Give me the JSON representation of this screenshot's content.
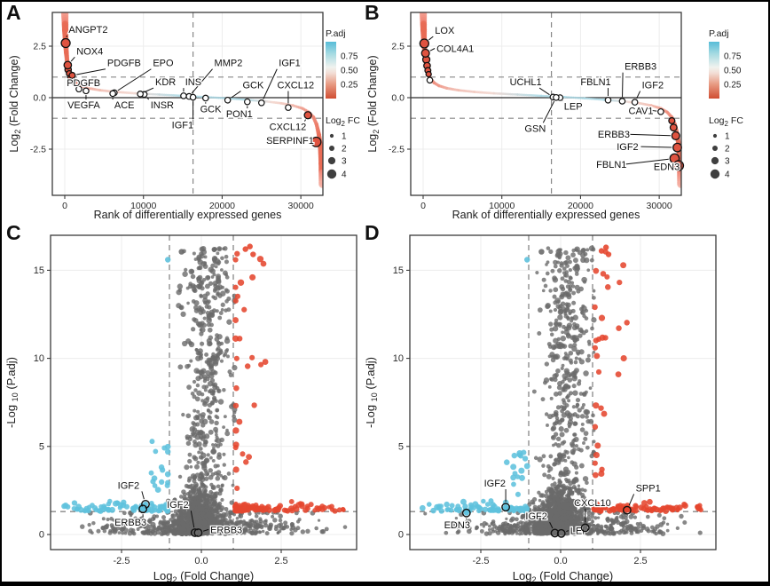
{
  "chart_data": {
    "type": "multi_panel",
    "title": "",
    "colors": {
      "curve_base": "#ef8273",
      "curve_pale": "#f5b3a6",
      "curve_mid_blue": "#aedae6",
      "curve_mid_pink": "#f2d5cd",
      "curve_deep": "#e86b55",
      "circled_fill": "#df5340",
      "volcano_red": "#e5472f",
      "volcano_blue": "#5ec1dd",
      "volcano_gray": "#6a6a6a",
      "frame": "#3a3a3a",
      "dashed": "#878787",
      "grid": "#ececec",
      "text": "#1c1c1c",
      "legend_dot": "#3f3f3f",
      "padj_gradient": [
        "#57bdd8",
        "#a8dbe2",
        "#f0f2ef",
        "#f2ded6",
        "#e89a82",
        "#d04e33"
      ]
    },
    "legend": {
      "padj_title": "P.adj",
      "padj_ticks": [
        "0.75",
        "0.50",
        "0.25"
      ],
      "size_title_parts": [
        {
          "t": "Log"
        },
        {
          "t": "2",
          "sub": true
        },
        {
          "t": " FC"
        }
      ],
      "size_entries": [
        "1",
        "2",
        "3",
        "4"
      ]
    },
    "rank_axis": {
      "xlabel": "Rank of differentially expressed genes",
      "ylabel_parts": [
        {
          "t": "Log"
        },
        {
          "t": "2",
          "sub": true
        },
        {
          "t": " (Fold Change)"
        }
      ],
      "xticks": [
        {
          "v": 0,
          "label": "0"
        },
        {
          "v": 10000,
          "label": "10000"
        },
        {
          "v": 20000,
          "label": "20000"
        },
        {
          "v": 30000,
          "label": "30000"
        }
      ],
      "yticks": [
        {
          "v": 2.5,
          "label": "2.5"
        },
        {
          "v": 0,
          "label": "0.0"
        },
        {
          "v": -2.5,
          "label": "-2.5"
        }
      ],
      "xlim": [
        -1600,
        33600
      ],
      "ylim": [
        -4.7,
        4.1
      ],
      "vline": 16300,
      "hlines": [
        1,
        -1
      ],
      "zero_line": 0
    },
    "volcano_axis": {
      "xlabel_parts": [
        {
          "t": "Log"
        },
        {
          "t": "2",
          "sub": true
        },
        {
          "t": " (Fold Change)"
        }
      ],
      "ylabel_parts": [
        {
          "t": "-Log "
        },
        {
          "t": "10",
          "sub": true
        },
        {
          "t": " (P.adj)"
        }
      ],
      "xticks": [
        {
          "v": -2.5,
          "label": "-2.5"
        },
        {
          "v": 0,
          "label": "0.0"
        },
        {
          "v": 2.5,
          "label": "2.5"
        }
      ],
      "yticks": [
        {
          "v": 0,
          "label": "0"
        },
        {
          "v": 5,
          "label": "5"
        },
        {
          "v": 10,
          "label": "10"
        },
        {
          "v": 15,
          "label": "15"
        }
      ],
      "xlim": [
        -4.7,
        4.9
      ],
      "ylim": [
        -0.9,
        17.0
      ],
      "vlines": [
        -1,
        1
      ],
      "hline": 1.3
    },
    "rank_curve": [
      [
        0,
        4.2
      ],
      [
        60,
        3.3
      ],
      [
        120,
        2.65
      ],
      [
        200,
        2.2
      ],
      [
        300,
        1.8
      ],
      [
        420,
        1.5
      ],
      [
        560,
        1.28
      ],
      [
        750,
        1.05
      ],
      [
        1000,
        0.88
      ],
      [
        1400,
        0.72
      ],
      [
        2000,
        0.58
      ],
      [
        3000,
        0.46
      ],
      [
        4500,
        0.36
      ],
      [
        6500,
        0.28
      ],
      [
        9000,
        0.21
      ],
      [
        12000,
        0.15
      ],
      [
        15000,
        0.09
      ],
      [
        18000,
        0.03
      ],
      [
        20500,
        -0.03
      ],
      [
        23000,
        -0.1
      ],
      [
        25500,
        -0.18
      ],
      [
        27500,
        -0.27
      ],
      [
        29000,
        -0.38
      ],
      [
        30200,
        -0.52
      ],
      [
        31000,
        -0.7
      ],
      [
        31600,
        -0.95
      ],
      [
        32000,
        -1.3
      ],
      [
        32300,
        -1.8
      ],
      [
        32500,
        -2.4
      ],
      [
        32650,
        -3.2
      ],
      [
        32750,
        -4.2
      ]
    ],
    "volcano_cloud": {
      "core": {
        "n": 1150,
        "x_mean": -0.05,
        "x_sd": 0.34,
        "x_clip": [
          -1.04,
          1.04
        ],
        "y_sd": 1.15
      },
      "base_wide": {
        "n": 500,
        "x_sd": 1.5,
        "x_clip": [
          -4.45,
          4.5
        ],
        "y_sd": 0.55
      },
      "column": {
        "n": 430,
        "x_mean": 0.22,
        "x_sd": 0.38,
        "x_clip": [
          -0.92,
          1.04
        ],
        "y_min": 2.0,
        "y_max": 16.3
      },
      "blue_band": {
        "n": 75,
        "x_start": -1.06,
        "x_span": 3.3,
        "pow": 1.7,
        "y_base": 1.33,
        "y_sd": 0.22
      },
      "blue_col": {
        "n": 16,
        "x_mean": -1.28,
        "x_sd": 0.17,
        "x_clip": [
          -1.75,
          -1.05
        ],
        "y_min": 2.1,
        "y_max": 5.3
      },
      "red_band": {
        "n": 95,
        "x_start": 1.05,
        "x_span": 3.45,
        "pow": 1.9,
        "y_base": 1.33,
        "y_sd": 0.2
      },
      "red_col": {
        "n": 30,
        "x_start": 1.07,
        "x_span": 1.15,
        "pow": 2.2,
        "y_min": 2.6,
        "y_max": 16.3
      }
    },
    "panels": {
      "A": {
        "letter": "A",
        "type": "rank_scatter",
        "annotations": [
          {
            "gene": "ANGPT2",
            "rank": 120,
            "lfc": 2.65,
            "marker": "circled",
            "r": 5.0,
            "lr": 500,
            "ll": 3.15
          },
          {
            "gene": "NOX4",
            "rank": 380,
            "lfc": 1.58,
            "marker": "circled",
            "r": 4.2,
            "lr": 1500,
            "ll": 2.1
          },
          {
            "gene": "PDGFB",
            "rank": 950,
            "lfc": 1.08,
            "marker": "circled",
            "r": 3.4,
            "lr": 5400,
            "ll": 1.52
          },
          {
            "gene": "EPO",
            "rank": 6300,
            "lfc": 0.24,
            "marker": "open",
            "lr": 11200,
            "ll": 1.52
          },
          {
            "gene": "MMP2",
            "rank": 15800,
            "lfc": 0.06,
            "marker": "open",
            "lr": 19000,
            "ll": 1.52
          },
          {
            "gene": "IGF1",
            "rank": 25000,
            "lfc": -0.25,
            "marker": "open",
            "lr": 27200,
            "ll": 1.52
          },
          {
            "gene": "PDGFB",
            "rank": 1800,
            "lfc": 0.42,
            "marker": "open",
            "lr": 250,
            "ll": 0.55
          },
          {
            "gene": "VEGFA",
            "rank": 2700,
            "lfc": 0.33,
            "marker": "open",
            "lr": 350,
            "ll": -0.52
          },
          {
            "gene": "ACE",
            "rank": 6100,
            "lfc": 0.2,
            "marker": "open",
            "lr": 6300,
            "ll": -0.52
          },
          {
            "gene": "INSR",
            "rank": 10100,
            "lfc": 0.16,
            "marker": "open",
            "lr": 10900,
            "ll": -0.52
          },
          {
            "gene": "KDR",
            "rank": 9600,
            "lfc": 0.18,
            "marker": "open",
            "lr": 11500,
            "ll": 0.6
          },
          {
            "gene": "INS",
            "rank": 15100,
            "lfc": 0.09,
            "marker": "open",
            "lr": 15300,
            "ll": 0.6
          },
          {
            "gene": "GCK",
            "rank": 17900,
            "lfc": -0.02,
            "marker": "open",
            "lr": 17200,
            "ll": -0.72
          },
          {
            "gene": "IGF1",
            "rank": 16300,
            "lfc": 0.02,
            "marker": "open",
            "lr": 13600,
            "ll": -1.48
          },
          {
            "gene": "GCK",
            "rank": 20700,
            "lfc": -0.12,
            "marker": "open",
            "lr": 22600,
            "ll": 0.45
          },
          {
            "gene": "PON1",
            "rank": 23200,
            "lfc": -0.2,
            "marker": "open",
            "lr": 20500,
            "ll": -0.95
          },
          {
            "gene": "CXCL12",
            "rank": 28400,
            "lfc": -0.48,
            "marker": "open",
            "lr": 27000,
            "ll": 0.45
          },
          {
            "gene": "CXCL12",
            "rank": 30900,
            "lfc": -0.85,
            "marker": "circled",
            "r": 4.0,
            "lr": 26000,
            "ll": -1.58
          },
          {
            "gene": "SERPINF1",
            "rank": 31950,
            "lfc": -2.15,
            "marker": "circled",
            "r": 5.4,
            "lr": 25600,
            "ll": -2.25
          }
        ],
        "extra_circled": [
          [
            430,
            1.36,
            3.6
          ],
          [
            570,
            1.17,
            3.2
          ],
          [
            730,
            0.97,
            3.0
          ]
        ],
        "extra_open": [
          [
            1050,
            0.8
          ]
        ]
      },
      "B": {
        "letter": "B",
        "type": "rank_scatter",
        "annotations": [
          {
            "gene": "LOX",
            "rank": 150,
            "lfc": 2.63,
            "marker": "circled",
            "r": 5.0,
            "lr": 1500,
            "ll": 3.1
          },
          {
            "gene": "COL4A1",
            "rank": 300,
            "lfc": 2.16,
            "marker": "circled",
            "r": 4.4,
            "lr": 1700,
            "ll": 2.22
          },
          {
            "gene": "UCHL1",
            "rank": 16500,
            "lfc": 0.03,
            "marker": "open",
            "lr": 11000,
            "ll": 0.6
          },
          {
            "gene": "LEP",
            "rank": 17400,
            "lfc": 0.0,
            "marker": "open",
            "lr": 17900,
            "ll": -0.58
          },
          {
            "gene": "GSN",
            "rank": 16900,
            "lfc": 0.01,
            "marker": "open",
            "lr": 12900,
            "ll": -1.65
          },
          {
            "gene": "FBLN1",
            "rank": 23500,
            "lfc": -0.12,
            "marker": "open",
            "lr": 20000,
            "ll": 0.6
          },
          {
            "gene": "ERBB3",
            "rank": 25300,
            "lfc": -0.17,
            "marker": "open",
            "lr": 25600,
            "ll": 1.35
          },
          {
            "gene": "IGF2",
            "rank": 26900,
            "lfc": -0.22,
            "marker": "open",
            "lr": 27800,
            "ll": 0.45
          },
          {
            "gene": "CAV1",
            "rank": 30200,
            "lfc": -0.68,
            "marker": "open",
            "lr": 26100,
            "ll": -0.8
          },
          {
            "gene": "ERBB3",
            "rank": 32100,
            "lfc": -1.85,
            "marker": "circled",
            "r": 4.4,
            "lr": 22200,
            "ll": -1.95
          },
          {
            "gene": "IGF2",
            "rank": 32300,
            "lfc": -2.42,
            "marker": "circled",
            "r": 4.8,
            "lr": 24600,
            "ll": -2.55
          },
          {
            "gene": "FBLN1",
            "rank": 31950,
            "lfc": -2.95,
            "marker": "circled",
            "r": 5.2,
            "lr": 22000,
            "ll": -3.4
          },
          {
            "gene": "EDN3",
            "rank": 32450,
            "lfc": -3.3,
            "marker": "circled",
            "r": 5.6,
            "lr": 29300,
            "ll": -3.52
          }
        ],
        "extra_circled": [
          [
            400,
            1.85,
            4.0
          ],
          [
            500,
            1.55,
            3.7
          ],
          [
            600,
            1.32,
            3.3
          ],
          [
            700,
            1.14,
            3.0
          ],
          [
            31600,
            -1.12,
            3.4
          ],
          [
            31820,
            -1.45,
            3.8
          ]
        ],
        "extra_open": [
          [
            850,
            0.85
          ]
        ]
      },
      "C": {
        "letter": "C",
        "type": "volcano",
        "seed": 11,
        "annotations": [
          {
            "gene": "IGF2",
            "x": -1.75,
            "y": 1.72,
            "dot": "blue",
            "lx": -2.62,
            "ly": 2.6
          },
          {
            "gene": "ERBB3",
            "x": -1.83,
            "y": 1.45,
            "dot": "blue",
            "lx": -2.72,
            "ly": 0.5
          },
          {
            "gene": "IGF2",
            "x": -0.2,
            "y": 0.1,
            "dot": "gray",
            "lx": -1.08,
            "ly": 1.5
          },
          {
            "gene": "ERBB3",
            "x": -0.1,
            "y": 0.1,
            "dot": "gray",
            "lx": 0.28,
            "ly": 0.08
          }
        ],
        "extra_points": {
          "blue": [
            [
              -1.05,
              15.6
            ]
          ],
          "gray": [
            [
              -0.62,
              16.05
            ]
          ],
          "red": [
            [
              1.38,
              16.2
            ],
            [
              1.52,
              16.35
            ],
            [
              1.62,
              15.9
            ]
          ]
        }
      },
      "D": {
        "letter": "D",
        "type": "volcano",
        "seed": 29,
        "annotations": [
          {
            "gene": "IGF2",
            "x": -1.72,
            "y": 1.55,
            "dot": "blue",
            "lx": -2.4,
            "ly": 2.72
          },
          {
            "gene": "EDN3",
            "x": -2.95,
            "y": 1.22,
            "dot": "blue",
            "lx": -3.65,
            "ly": 0.35
          },
          {
            "gene": "IGF2",
            "x": -0.18,
            "y": 0.08,
            "dot": "gray",
            "lx": -1.1,
            "ly": 0.85
          },
          {
            "gene": "LEP",
            "x": 0.02,
            "y": 0.06,
            "dot": "gray",
            "lx": 0.3,
            "ly": 0.02
          },
          {
            "gene": "CXCL10",
            "x": 0.77,
            "y": 0.38,
            "dot": "gray",
            "lx": 0.42,
            "ly": 1.62
          },
          {
            "gene": "SPP1",
            "x": 2.08,
            "y": 1.38,
            "dot": "red",
            "lx": 2.35,
            "ly": 2.45
          }
        ],
        "extra_points": {
          "blue": [
            [
              -1.05,
              15.6
            ]
          ],
          "gray": [
            [
              -0.6,
              16.05
            ]
          ],
          "red": [
            [
              1.42,
              16.3
            ],
            [
              1.28,
              16.1
            ],
            [
              1.5,
              15.9
            ]
          ]
        }
      }
    }
  }
}
